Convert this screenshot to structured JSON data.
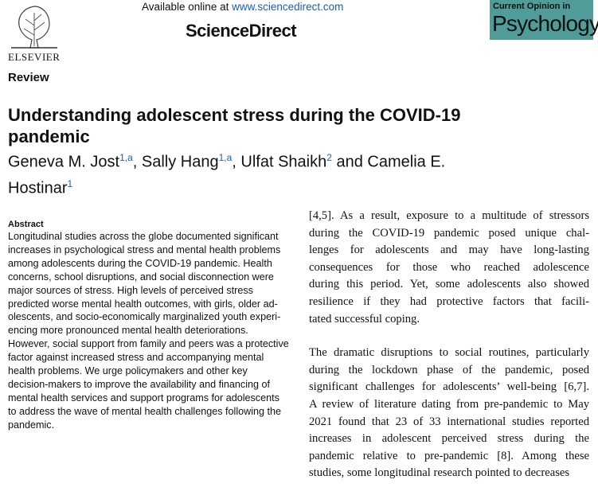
{
  "header": {
    "available_online": "Available online at",
    "url": "www.sciencedirect.com",
    "brand": "ScienceDirect",
    "publisher": "ELSEVIER",
    "journal_series": "Current Opinion in",
    "journal_name": "Psychology"
  },
  "article_type": "Review",
  "title": "Understanding adolescent stress during the COVID-19 pandemic",
  "authors": [
    {
      "name": "Geneva M. Jost",
      "affiliation": "1,a",
      "separator": ", "
    },
    {
      "name": "Sally Hang",
      "affiliation": "1,a",
      "separator": ", "
    },
    {
      "name": "Ulfat Shaikh",
      "affiliation": "2",
      "separator": " and "
    },
    {
      "name": "Camelia E. Hostinar",
      "affiliation": "1"
    }
  ],
  "abstract": {
    "heading": "Abstract",
    "lines": [
      "Longitudinal studies across the globe documented significant",
      "increases in psychological stress and mental health problems",
      "among adolescents during the COVID-19 pandemic. Health",
      "concerns, school disruptions, and social disconnection were",
      "major sources of stress. High levels of perceived stress",
      "predicted worse mental health outcomes, with girls, older ad-",
      "olescents, and socio-economically marginalized youth experi-",
      "encing more pronounced mental health deteriorations.",
      "However, social support from family and peers was a protective",
      "factor against increased stress and accompanying mental",
      "health problems. We urge policymakers and other key",
      "decision-makers to improve the availability and financing of",
      "mental health services and support programs for adolescents",
      "to address the wave of mental health challenges following the",
      "pandemic."
    ]
  },
  "body": {
    "paragraphs": [
      [
        "[4,5]. As a result, exposure to a multitude of stressors",
        "during the COVID-19 pandemic posed unique chal-",
        "lenges for adolescents and may have long-lasting",
        "consequences for those who reached adolescence",
        "during this period. Yet, some adolescents also showed",
        "resilience if they had protective factors that facili-",
        "tated successful coping."
      ],
      [
        "The dramatic disruptions to social routines, particularly",
        "during the lockdown phase of the pandemic, posed",
        "significant challenges for adolescents’ well-being [6,7].",
        "A review of literature dating from pre-pandemic to May",
        "2021 found that 23 of 33 international studies reported",
        "increases in adolescent perceived stress during the",
        "pandemic relative to pre-pandemic [8]. Among these",
        "studies, some longitudinal research pointed to decreases"
      ]
    ]
  }
}
